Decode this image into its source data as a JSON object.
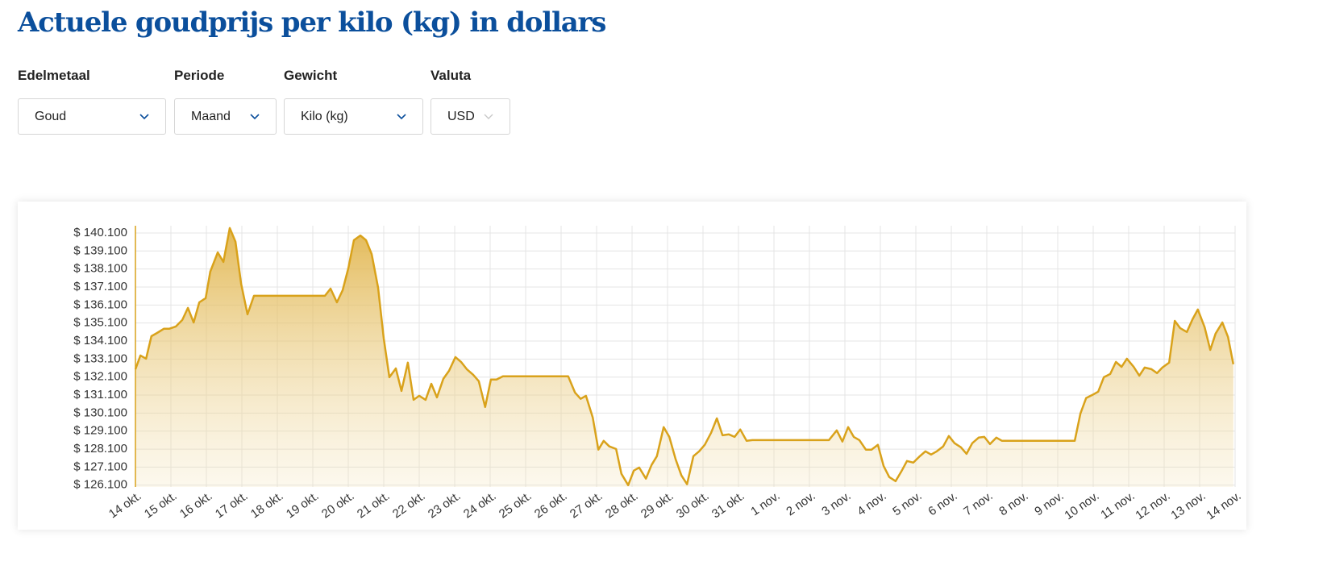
{
  "header": {
    "title": "Actuele goudprijs per kilo (kg) in dollars"
  },
  "filters": [
    {
      "label": "Edelmetaal",
      "value": "Goud"
    },
    {
      "label": "Periode",
      "value": "Maand"
    },
    {
      "label": "Gewicht",
      "value": "Kilo (kg)"
    },
    {
      "label": "Valuta",
      "value": "USD"
    }
  ],
  "chart_data": {
    "type": "area",
    "color": "#d9a21b",
    "grid": true,
    "xlim": [
      0,
      31
    ],
    "ylim": [
      126000,
      140500
    ],
    "xticks": [
      {
        "value": 0,
        "label": "14 okt."
      },
      {
        "value": 1,
        "label": "15 okt."
      },
      {
        "value": 2,
        "label": "16 okt."
      },
      {
        "value": 3,
        "label": "17 okt."
      },
      {
        "value": 4,
        "label": "18 okt."
      },
      {
        "value": 5,
        "label": "19 okt."
      },
      {
        "value": 6,
        "label": "20 okt."
      },
      {
        "value": 7,
        "label": "21 okt."
      },
      {
        "value": 8,
        "label": "22 okt."
      },
      {
        "value": 9,
        "label": "23 okt."
      },
      {
        "value": 10,
        "label": "24 okt."
      },
      {
        "value": 11,
        "label": "25 okt."
      },
      {
        "value": 12,
        "label": "26 okt."
      },
      {
        "value": 13,
        "label": "27 okt."
      },
      {
        "value": 14,
        "label": "28 okt."
      },
      {
        "value": 15,
        "label": "29 okt."
      },
      {
        "value": 16,
        "label": "30 okt."
      },
      {
        "value": 17,
        "label": "31 okt."
      },
      {
        "value": 18,
        "label": "1 nov."
      },
      {
        "value": 19,
        "label": "2 nov."
      },
      {
        "value": 20,
        "label": "3 nov."
      },
      {
        "value": 21,
        "label": "4 nov."
      },
      {
        "value": 22,
        "label": "5 nov."
      },
      {
        "value": 23,
        "label": "6 nov."
      },
      {
        "value": 24,
        "label": "7 nov."
      },
      {
        "value": 25,
        "label": "8 nov."
      },
      {
        "value": 26,
        "label": "9 nov."
      },
      {
        "value": 27,
        "label": "10 nov."
      },
      {
        "value": 28,
        "label": "11 nov."
      },
      {
        "value": 29,
        "label": "12 nov."
      },
      {
        "value": 30,
        "label": "13 nov."
      },
      {
        "value": 31,
        "label": "14 nov."
      }
    ],
    "yticks": [
      {
        "value": 126100,
        "label": "$ 126.100"
      },
      {
        "value": 127100,
        "label": "$ 127.100"
      },
      {
        "value": 128100,
        "label": "$ 128.100"
      },
      {
        "value": 129100,
        "label": "$ 129.100"
      },
      {
        "value": 130100,
        "label": "$ 130.100"
      },
      {
        "value": 131100,
        "label": "$ 131.100"
      },
      {
        "value": 132100,
        "label": "$ 132.100"
      },
      {
        "value": 133100,
        "label": "$ 133.100"
      },
      {
        "value": 134100,
        "label": "$ 134.100"
      },
      {
        "value": 135100,
        "label": "$ 135.100"
      },
      {
        "value": 136100,
        "label": "$ 136.100"
      },
      {
        "value": 137100,
        "label": "$ 137.100"
      },
      {
        "value": 138100,
        "label": "$ 138.100"
      },
      {
        "value": 139100,
        "label": "$ 139.100"
      },
      {
        "value": 140100,
        "label": "$ 140.100"
      }
    ],
    "x": [
      0,
      0.14,
      0.3,
      0.45,
      0.61,
      0.8,
      0.95,
      1.14,
      1.32,
      1.48,
      1.64,
      1.8,
      1.98,
      2.11,
      2.32,
      2.48,
      2.66,
      2.82,
      2.98,
      3.16,
      3.34,
      5.34,
      5.5,
      5.68,
      5.84,
      6.0,
      6.16,
      6.34,
      6.5,
      6.66,
      6.84,
      7.0,
      7.16,
      7.34,
      7.5,
      7.68,
      7.84,
      8.0,
      8.18,
      8.34,
      8.5,
      8.68,
      8.84,
      9.02,
      9.18,
      9.34,
      9.52,
      9.68,
      9.86,
      10.02,
      10.18,
      10.36,
      12.2,
      12.39,
      12.55,
      12.7,
      12.89,
      13.05,
      13.2,
      13.36,
      13.55,
      13.7,
      13.89,
      14.05,
      14.2,
      14.39,
      14.55,
      14.7,
      14.89,
      15.05,
      15.23,
      15.39,
      15.55,
      15.73,
      15.89,
      16.05,
      16.23,
      16.39,
      16.55,
      16.73,
      16.89,
      17.05,
      17.23,
      17.39,
      19.55,
      19.77,
      19.93,
      20.09,
      20.25,
      20.41,
      20.59,
      20.75,
      20.93,
      21.09,
      21.25,
      21.43,
      21.59,
      21.75,
      21.93,
      22.09,
      22.27,
      22.43,
      22.59,
      22.77,
      22.93,
      23.09,
      23.27,
      23.43,
      23.59,
      23.77,
      23.93,
      24.09,
      24.27,
      24.43,
      26.48,
      26.64,
      26.8,
      26.98,
      27.14,
      27.3,
      27.48,
      27.64,
      27.8,
      27.95,
      28.14,
      28.3,
      28.45,
      28.64,
      28.8,
      28.95,
      29.14,
      29.3,
      29.45,
      29.64,
      29.8,
      29.95,
      30.14,
      30.3,
      30.45,
      30.64,
      30.8,
      30.95
    ],
    "values": [
      132540,
      133300,
      133120,
      134370,
      134550,
      134780,
      134780,
      134910,
      135270,
      135940,
      135130,
      136250,
      136480,
      137950,
      139020,
      138490,
      140370,
      139610,
      137280,
      135580,
      136610,
      136610,
      137010,
      136250,
      136920,
      138130,
      139700,
      139960,
      139700,
      138930,
      137060,
      134240,
      132090,
      132580,
      131330,
      132900,
      130840,
      131060,
      130840,
      131730,
      130970,
      132000,
      132450,
      133210,
      132940,
      132540,
      132230,
      131870,
      130440,
      131960,
      131960,
      132140,
      132140,
      131240,
      130890,
      131060,
      129860,
      128070,
      128560,
      128250,
      128110,
      126730,
      126100,
      126910,
      127080,
      126460,
      127220,
      127710,
      129320,
      128780,
      127530,
      126640,
      126150,
      127710,
      127980,
      128340,
      129010,
      129810,
      128870,
      128920,
      128780,
      129190,
      128560,
      128600,
      128600,
      129140,
      128520,
      129320,
      128780,
      128600,
      128070,
      128070,
      128340,
      127170,
      126550,
      126320,
      126860,
      127440,
      127350,
      127670,
      127980,
      127800,
      127980,
      128250,
      128830,
      128430,
      128200,
      127840,
      128430,
      128740,
      128780,
      128380,
      128740,
      128560,
      128560,
      130080,
      130930,
      131110,
      131290,
      132090,
      132270,
      132940,
      132670,
      133120,
      132670,
      132180,
      132630,
      132540,
      132320,
      132630,
      132900,
      135220,
      134820,
      134600,
      135310,
      135850,
      134870,
      133610,
      134510,
      135130,
      134330,
      132810
    ]
  }
}
